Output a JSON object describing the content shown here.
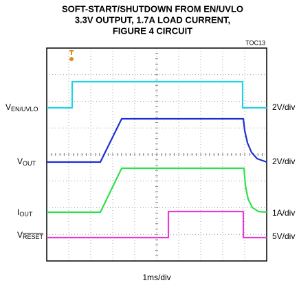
{
  "title_lines": [
    "SOFT-START/SHUTDOWN FROM EN/UVLO",
    "3.3V OUTPUT, 1.7A LOAD CURRENT,",
    "FIGURE 4 CIRCUIT"
  ],
  "tag": "TOC13",
  "channels": [
    {
      "label": "V",
      "sub": "EN/UVLO",
      "scale": "2V/div"
    },
    {
      "label": "V",
      "sub": "OUT",
      "scale": "2V/div"
    },
    {
      "label": "I",
      "sub": "OUT",
      "scale": "1A/div"
    },
    {
      "label": "V",
      "sub": "RESET",
      "scale": "5V/div"
    }
  ],
  "time_scale": "1ms/div"
}
